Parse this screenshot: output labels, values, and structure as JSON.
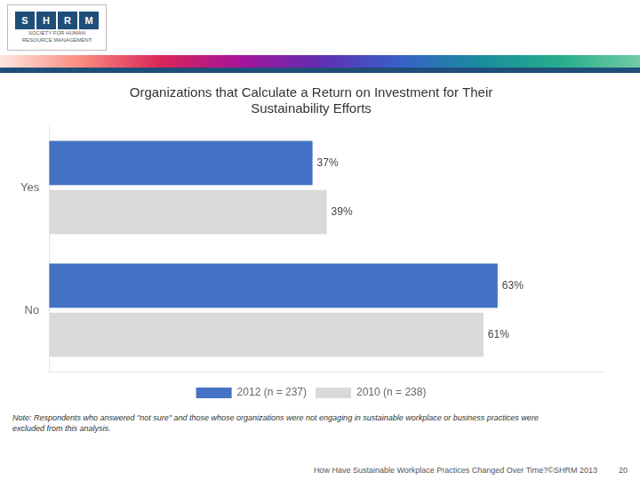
{
  "chart_data": {
    "type": "bar",
    "orientation": "horizontal",
    "title": "Organizations that Calculate a Return on Investment for Their\nSustainability Efforts",
    "categories": [
      "Yes",
      "No"
    ],
    "series": [
      {
        "name": "2012 (n = 237)",
        "color": "#4472C4",
        "values": [
          37,
          63
        ],
        "value_labels": [
          "37%",
          "63%"
        ]
      },
      {
        "name": "2010 (n = 238)",
        "color": "#D9D9D9",
        "values": [
          39,
          61
        ],
        "value_labels": [
          "39%",
          "61%"
        ]
      }
    ],
    "xlim": [
      0,
      78
    ],
    "tick_labels": "y",
    "grid": false,
    "legend": "bottom",
    "data_labels": true,
    "annotations": [
      "SHRM",
      "SOCIETY FOR HUMAN",
      "RESOURCE MANAGEMENT",
      "Note: Respondents who answered \"not sure\" and those whose organizations were not engaging in sustainable workplace or business practices were\nexcluded from this analysis.",
      "How Have Sustainable Workplace Practices Changed Over Time?©SHRM 2013",
      "20"
    ]
  }
}
